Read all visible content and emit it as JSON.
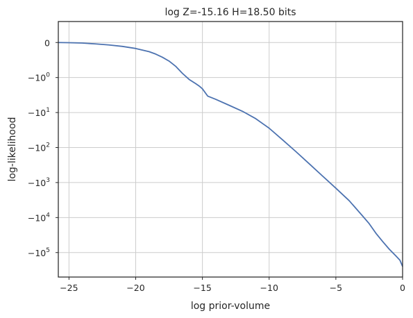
{
  "chart_data": {
    "type": "line",
    "title": "log Z=-15.16 H=18.50 bits",
    "xlabel": "log prior-volume",
    "ylabel": "log-likelihood",
    "xlim": [
      -25.8,
      0
    ],
    "ylim": [
      -500000,
      0.6
    ],
    "y_scale": "symlog",
    "x_ticks": [
      {
        "value": -25,
        "label": "−25"
      },
      {
        "value": -20,
        "label": "−20"
      },
      {
        "value": -15,
        "label": "−15"
      },
      {
        "value": -10,
        "label": "−10"
      },
      {
        "value": -5,
        "label": "−5"
      },
      {
        "value": 0,
        "label": "0"
      }
    ],
    "y_ticks": [
      {
        "value": 0,
        "base": "0",
        "exp": ""
      },
      {
        "value": -1,
        "base": "−10",
        "exp": "0"
      },
      {
        "value": -10,
        "base": "−10",
        "exp": "1"
      },
      {
        "value": -100,
        "base": "−10",
        "exp": "2"
      },
      {
        "value": -1000,
        "base": "−10",
        "exp": "3"
      },
      {
        "value": -10000,
        "base": "−10",
        "exp": "4"
      },
      {
        "value": -100000,
        "base": "−10",
        "exp": "5"
      }
    ],
    "grid": true,
    "series": [
      {
        "color": "#4c72b0",
        "x": [
          -25.8,
          -25,
          -24,
          -23,
          -22,
          -21,
          -20,
          -19,
          -18.5,
          -18,
          -17.5,
          -17,
          -16.5,
          -16,
          -15.5,
          -15.2,
          -15,
          -14.6,
          -14,
          -13,
          -12,
          -11,
          -10,
          -9,
          -8,
          -7,
          -6,
          -5,
          -4,
          -3,
          -2.5,
          -2,
          -1.5,
          -1,
          -0.5,
          -0.2,
          0
        ],
        "y": [
          0,
          -0.005,
          -0.015,
          -0.04,
          -0.07,
          -0.11,
          -0.17,
          -0.26,
          -0.33,
          -0.42,
          -0.53,
          -0.68,
          -0.88,
          -1.13,
          -1.5,
          -1.8,
          -2.1,
          -3.4,
          -4.2,
          -6.2,
          -9.2,
          -15,
          -28,
          -60,
          -130,
          -290,
          -650,
          -1450,
          -3300,
          -9000,
          -15000,
          -28000,
          -48000,
          -80000,
          -125000,
          -165000,
          -250000
        ]
      }
    ]
  }
}
